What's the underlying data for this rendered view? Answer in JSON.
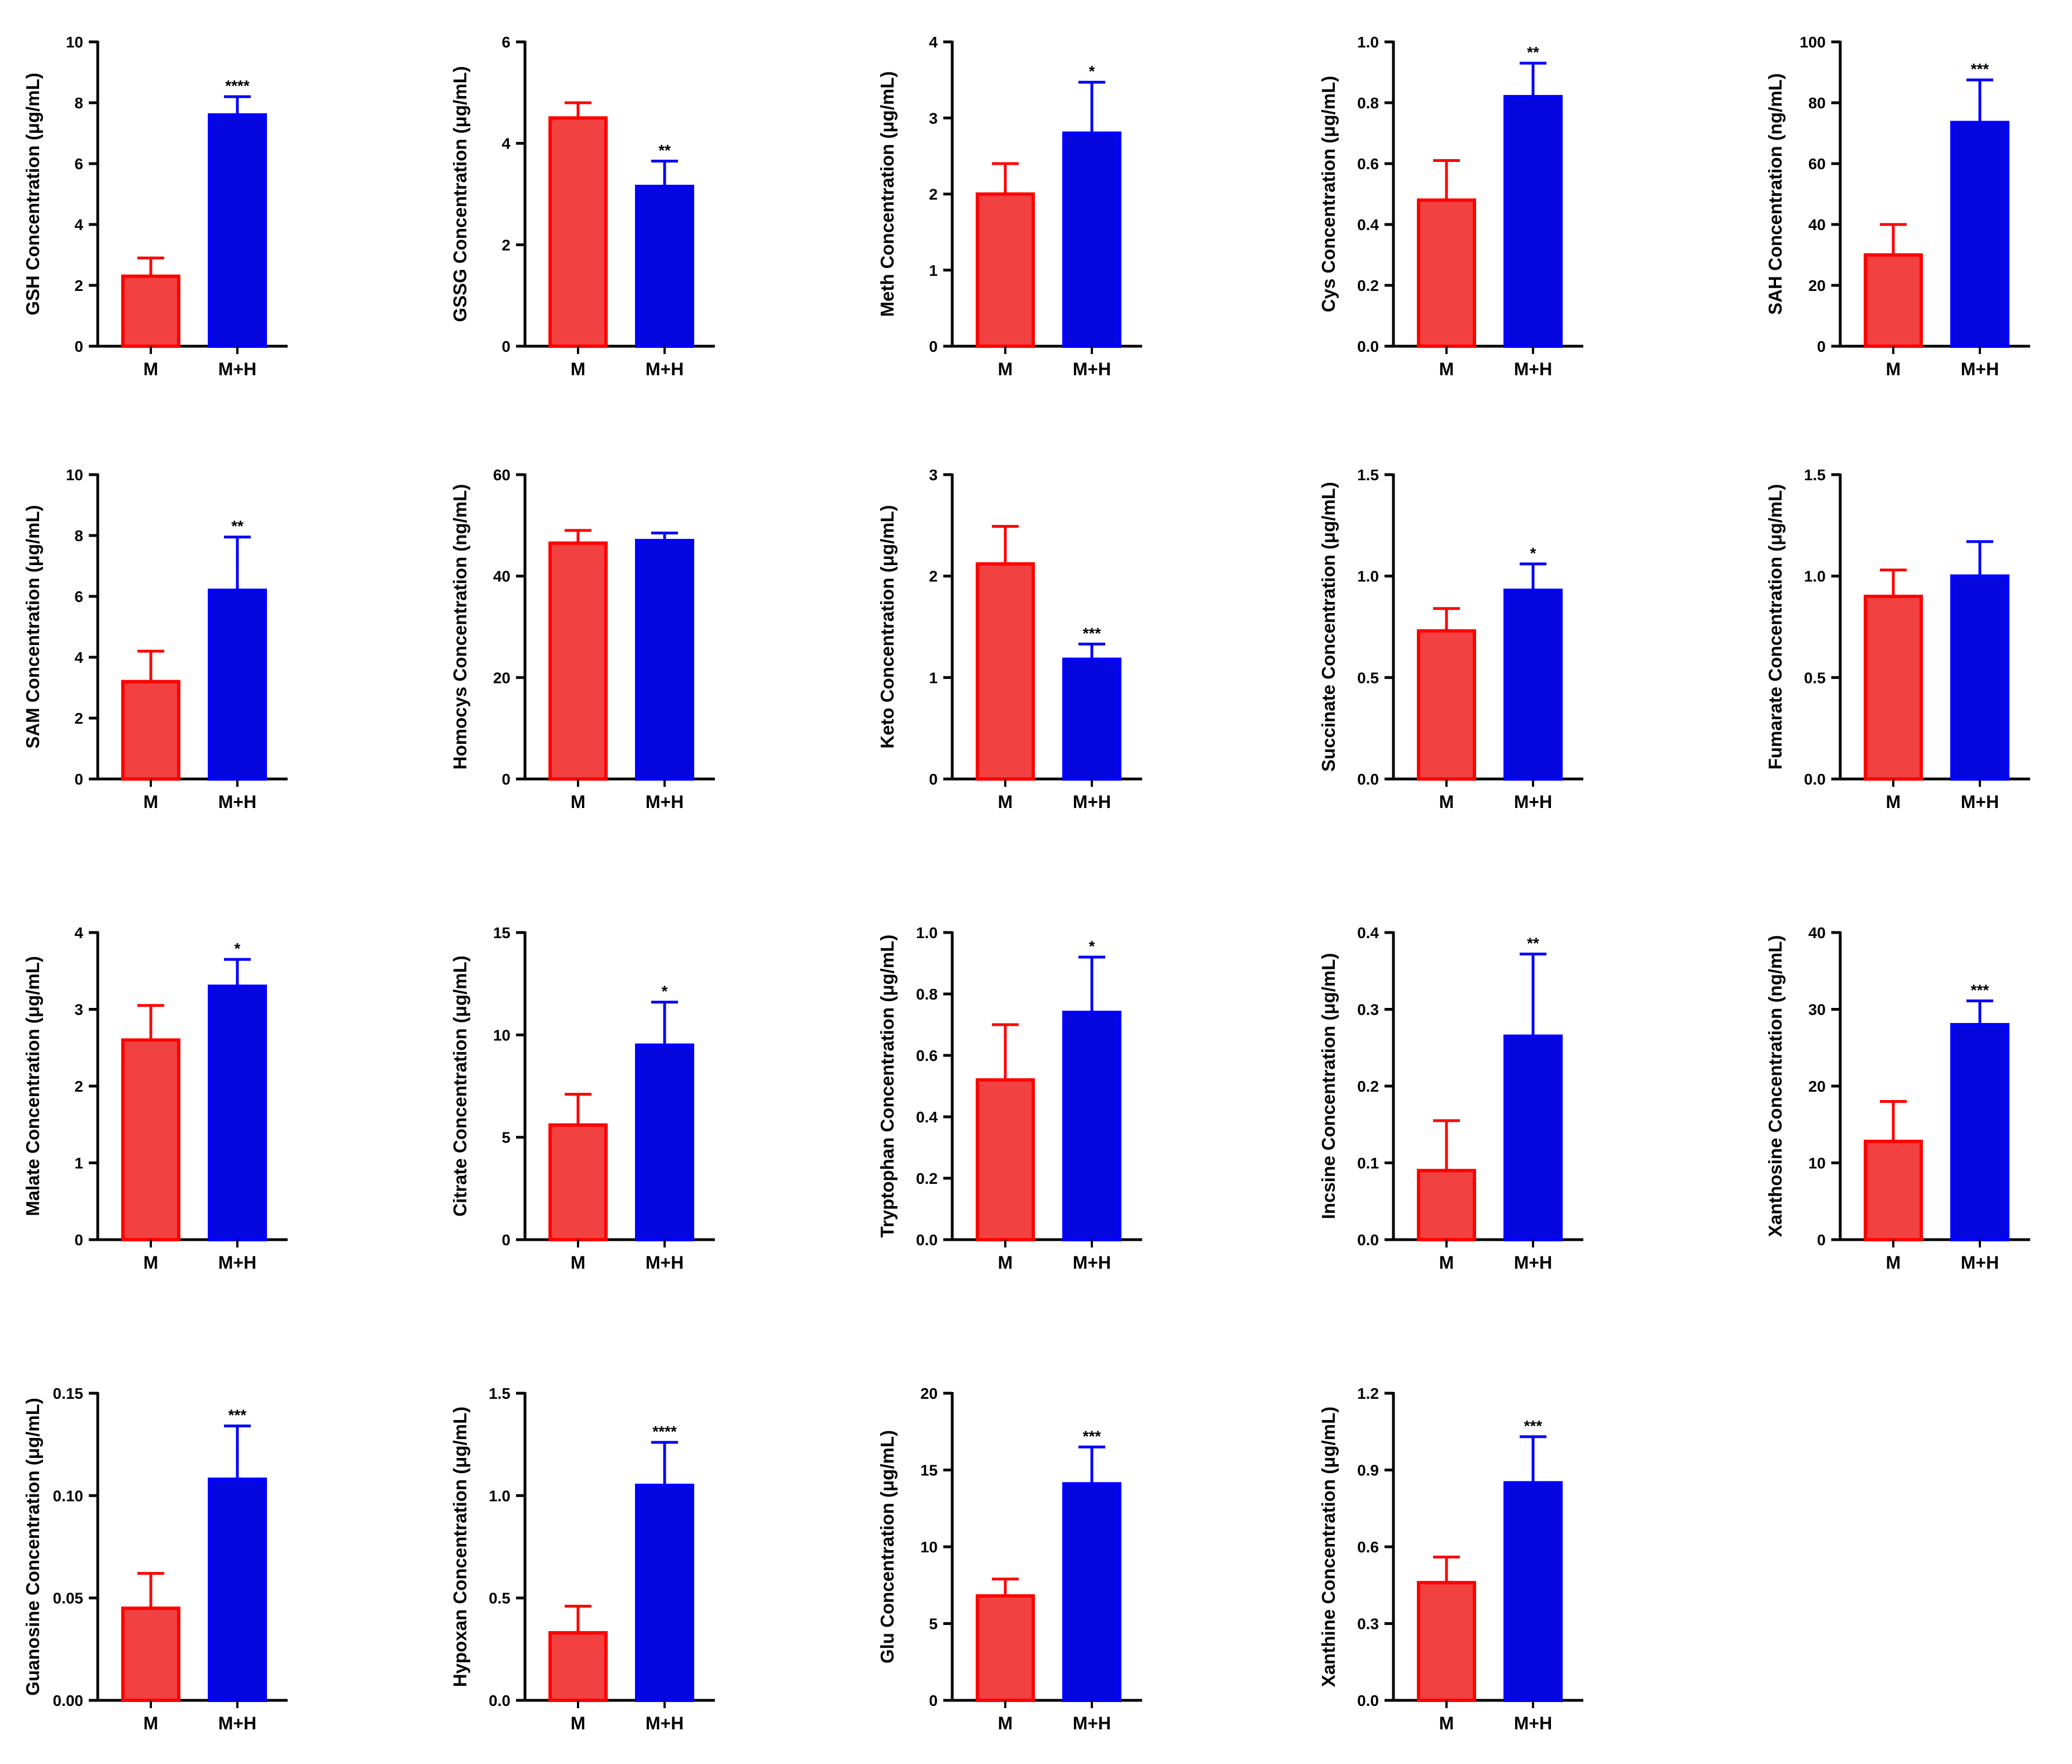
{
  "colors": {
    "M_fill": "#f24141",
    "M_stroke": "#ff0000",
    "MH_fill": "#0606df",
    "MH_stroke": "#0000ff",
    "axis": "#000000"
  },
  "chart_data": [
    {
      "type": "bar",
      "title": "",
      "ylabel": "GSH Concentration (μg/mL)",
      "categories": [
        "M",
        "M+H"
      ],
      "values": [
        2.3,
        7.6
      ],
      "errors": [
        0.6,
        0.6
      ],
      "ylim": [
        0,
        10
      ],
      "yticks": [
        "0",
        "2",
        "4",
        "6",
        "8",
        "10"
      ],
      "significance": "****"
    },
    {
      "type": "bar",
      "title": "",
      "ylabel": "GSSG Concentration (μg/mL)",
      "categories": [
        "M",
        "M+H"
      ],
      "values": [
        4.5,
        3.15
      ],
      "errors": [
        0.3,
        0.5
      ],
      "ylim": [
        0,
        6
      ],
      "yticks": [
        "0",
        "2",
        "4",
        "6"
      ],
      "significance": "**"
    },
    {
      "type": "bar",
      "title": "",
      "ylabel": "Meth Concentration (μg/mL)",
      "categories": [
        "M",
        "M+H"
      ],
      "values": [
        2.0,
        2.8
      ],
      "errors": [
        0.4,
        0.67
      ],
      "ylim": [
        0,
        4
      ],
      "yticks": [
        "0",
        "1",
        "2",
        "3",
        "4"
      ],
      "significance": "*"
    },
    {
      "type": "bar",
      "title": "",
      "ylabel": "Cys Concentration (μg/mL)",
      "categories": [
        "M",
        "M+H"
      ],
      "values": [
        0.48,
        0.82
      ],
      "errors": [
        0.13,
        0.11
      ],
      "ylim": [
        0,
        1.0
      ],
      "yticks": [
        "0.0",
        "0.2",
        "0.4",
        "0.6",
        "0.8",
        "1.0"
      ],
      "significance": "**"
    },
    {
      "type": "bar",
      "title": "",
      "ylabel": "SAH Concentration (ng/mL)",
      "categories": [
        "M",
        "M+H"
      ],
      "values": [
        30,
        73.5
      ],
      "errors": [
        10,
        14
      ],
      "ylim": [
        0,
        100
      ],
      "yticks": [
        "0",
        "20",
        "40",
        "60",
        "80",
        "100"
      ],
      "significance": "***"
    },
    {
      "type": "bar",
      "title": "",
      "ylabel": "SAM Concentration (μg/mL)",
      "categories": [
        "M",
        "M+H"
      ],
      "values": [
        3.2,
        6.2
      ],
      "errors": [
        1.0,
        1.75
      ],
      "ylim": [
        0,
        10
      ],
      "yticks": [
        "0",
        "2",
        "4",
        "6",
        "8",
        "10"
      ],
      "significance": "**"
    },
    {
      "type": "bar",
      "title": "",
      "ylabel": "Homocys Concentration (ng/mL)",
      "categories": [
        "M",
        "M+H"
      ],
      "values": [
        46.5,
        47.0
      ],
      "errors": [
        2.5,
        1.5
      ],
      "ylim": [
        0,
        60
      ],
      "yticks": [
        "0",
        "20",
        "40",
        "60"
      ],
      "significance": ""
    },
    {
      "type": "bar",
      "title": "",
      "ylabel": "Keto Concentration (μg/mL)",
      "categories": [
        "M",
        "M+H"
      ],
      "values": [
        2.12,
        1.18
      ],
      "errors": [
        0.37,
        0.15
      ],
      "ylim": [
        0,
        3
      ],
      "yticks": [
        "0",
        "1",
        "2",
        "3"
      ],
      "significance": "***"
    },
    {
      "type": "bar",
      "title": "",
      "ylabel": "Succinate Concentration (μg/mL)",
      "categories": [
        "M",
        "M+H"
      ],
      "values": [
        0.73,
        0.93
      ],
      "errors": [
        0.11,
        0.13
      ],
      "ylim": [
        0,
        1.5
      ],
      "yticks": [
        "0.0",
        "0.5",
        "1.0",
        "1.5"
      ],
      "significance": "*"
    },
    {
      "type": "bar",
      "title": "",
      "ylabel": "Fumarate Concentration (μg/mL)",
      "categories": [
        "M",
        "M+H"
      ],
      "values": [
        0.9,
        1.0
      ],
      "errors": [
        0.13,
        0.17
      ],
      "ylim": [
        0,
        1.5
      ],
      "yticks": [
        "0.0",
        "0.5",
        "1.0",
        "1.5"
      ],
      "significance": ""
    },
    {
      "type": "bar",
      "title": "",
      "ylabel": "Malate Concentration (μg/mL)",
      "categories": [
        "M",
        "M+H"
      ],
      "values": [
        2.6,
        3.3
      ],
      "errors": [
        0.45,
        0.35
      ],
      "ylim": [
        0,
        4
      ],
      "yticks": [
        "0",
        "1",
        "2",
        "3",
        "4"
      ],
      "significance": "*"
    },
    {
      "type": "bar",
      "title": "",
      "ylabel": "Citrate Concentration (μg/mL)",
      "categories": [
        "M",
        "M+H"
      ],
      "values": [
        5.6,
        9.5
      ],
      "errors": [
        1.5,
        2.1
      ],
      "ylim": [
        0,
        15
      ],
      "yticks": [
        "0",
        "5",
        "10",
        "15"
      ],
      "significance": "*"
    },
    {
      "type": "bar",
      "title": "",
      "ylabel": "Tryptophan Concentration (μg/mL)",
      "categories": [
        "M",
        "M+H"
      ],
      "values": [
        0.52,
        0.74
      ],
      "errors": [
        0.18,
        0.18
      ],
      "ylim": [
        0,
        1.0
      ],
      "yticks": [
        "0.0",
        "0.2",
        "0.4",
        "0.6",
        "0.8",
        "1.0"
      ],
      "significance": "*"
    },
    {
      "type": "bar",
      "title": "",
      "ylabel": "Incsine Concentration (μg/mL)",
      "categories": [
        "M",
        "M+H"
      ],
      "values": [
        0.09,
        0.265
      ],
      "errors": [
        0.065,
        0.107
      ],
      "ylim": [
        0,
        0.4
      ],
      "yticks": [
        "0.0",
        "0.1",
        "0.2",
        "0.3",
        "0.4"
      ],
      "significance": "**"
    },
    {
      "type": "bar",
      "title": "",
      "ylabel": "Xanthosine Concentration (ng/mL)",
      "categories": [
        "M",
        "M+H"
      ],
      "values": [
        12.8,
        28.0
      ],
      "errors": [
        5.2,
        3.1
      ],
      "ylim": [
        0,
        40
      ],
      "yticks": [
        "0",
        "10",
        "20",
        "30",
        "40"
      ],
      "significance": "***"
    },
    {
      "type": "bar",
      "title": "",
      "ylabel": "Guanosine Concentration (μg/mL)",
      "categories": [
        "M",
        "M+H"
      ],
      "values": [
        0.045,
        0.108
      ],
      "errors": [
        0.017,
        0.026
      ],
      "ylim": [
        0,
        0.15
      ],
      "yticks": [
        "0.00",
        "0.05",
        "0.10",
        "0.15"
      ],
      "significance": "***"
    },
    {
      "type": "bar",
      "title": "",
      "ylabel": "Hypoxan Concentration (μg/mL)",
      "categories": [
        "M",
        "M+H"
      ],
      "values": [
        0.33,
        1.05
      ],
      "errors": [
        0.13,
        0.21
      ],
      "ylim": [
        0,
        1.5
      ],
      "yticks": [
        "0.0",
        "0.5",
        "1.0",
        "1.5"
      ],
      "significance": "****"
    },
    {
      "type": "bar",
      "title": "",
      "ylabel": "Glu Concentration (μg/mL)",
      "categories": [
        "M",
        "M+H"
      ],
      "values": [
        6.8,
        14.1
      ],
      "errors": [
        1.1,
        2.4
      ],
      "ylim": [
        0,
        20
      ],
      "yticks": [
        "0",
        "5",
        "10",
        "15",
        "20"
      ],
      "significance": "***"
    },
    {
      "type": "bar",
      "title": "",
      "ylabel": "Xanthine Concentration (μg/mL)",
      "categories": [
        "M",
        "M+H"
      ],
      "values": [
        0.46,
        0.85
      ],
      "errors": [
        0.1,
        0.18
      ],
      "ylim": [
        0,
        1.2
      ],
      "yticks": [
        "0.0",
        "0.3",
        "0.6",
        "0.9",
        "1.2"
      ],
      "significance": "***"
    }
  ]
}
